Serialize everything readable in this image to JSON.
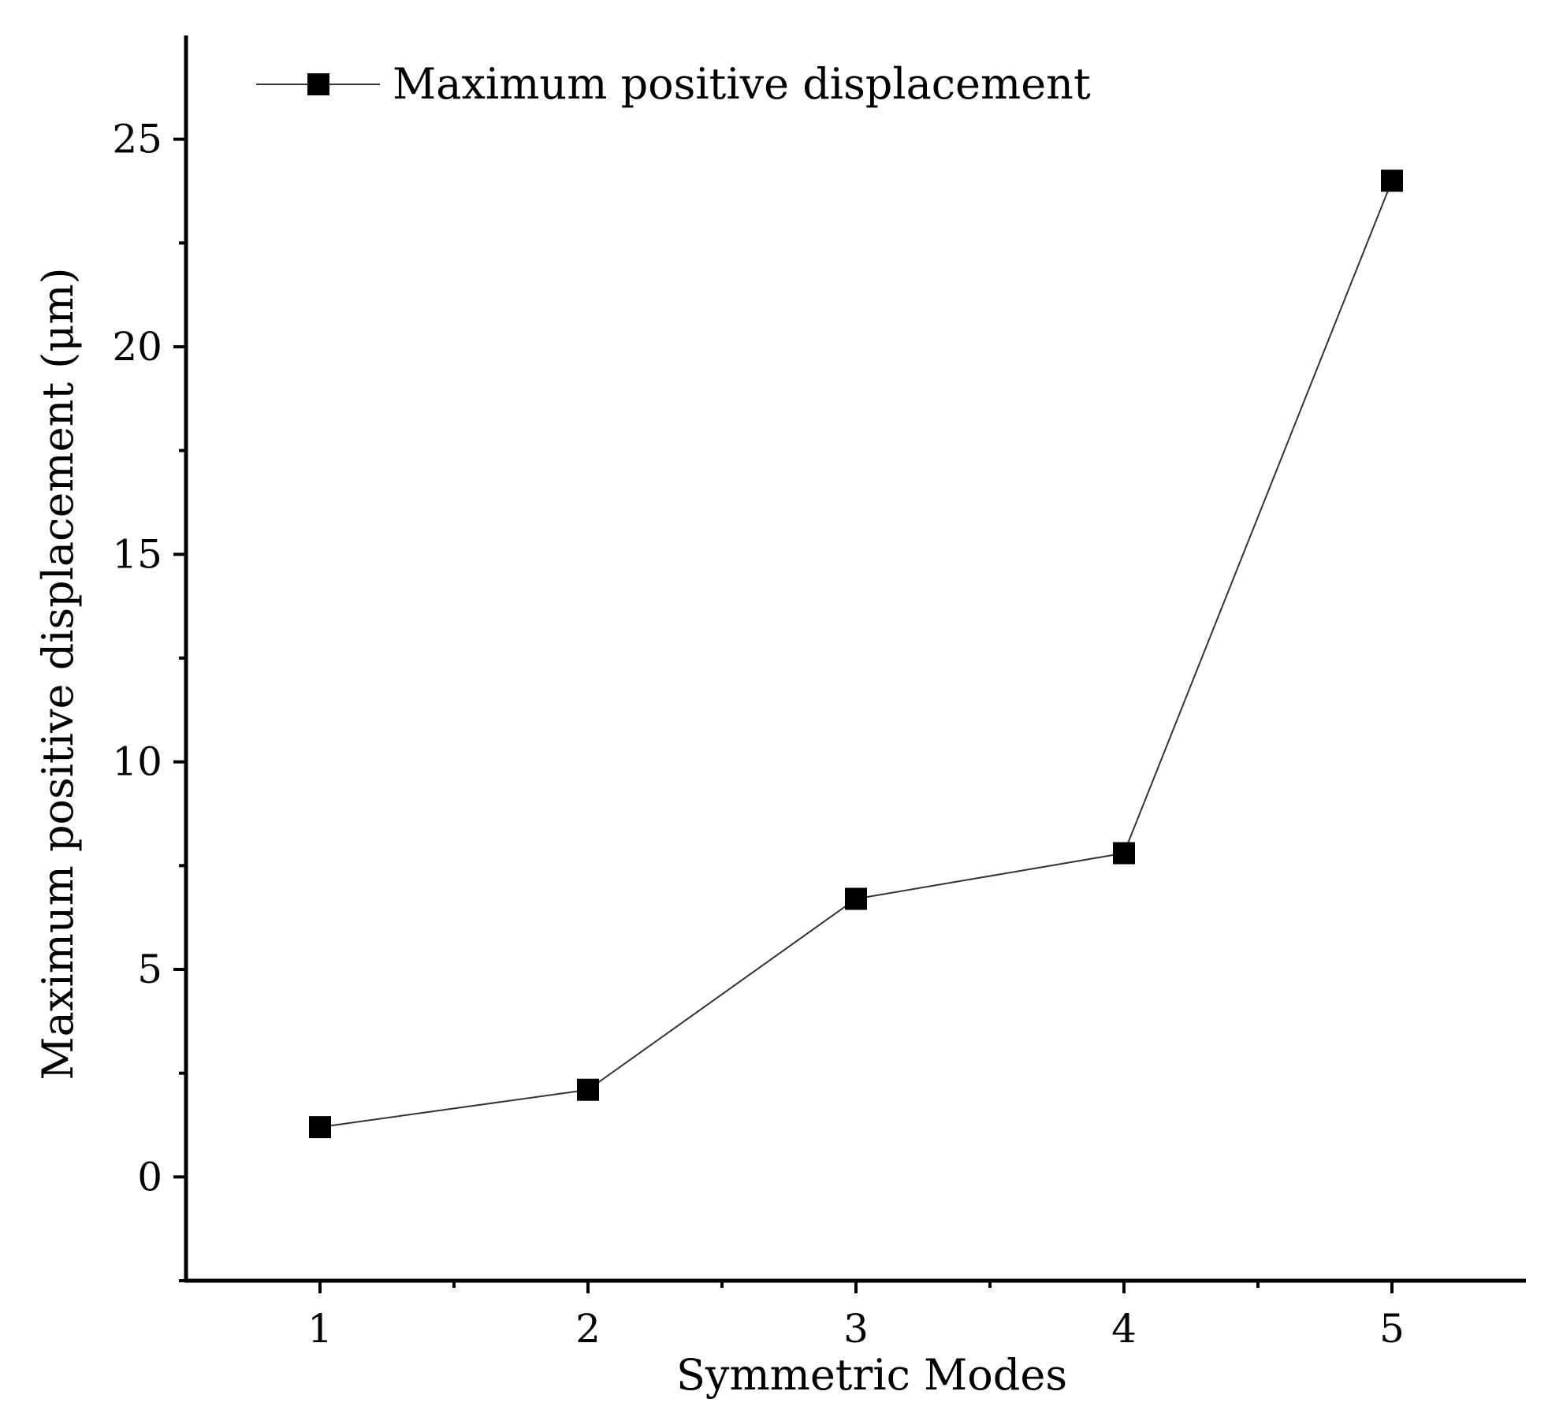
{
  "chart_data": {
    "type": "line",
    "title": "",
    "xlabel": "Symmetric Modes",
    "ylabel": "Maximum positive displacement (μm)",
    "x": [
      1,
      2,
      3,
      4,
      5
    ],
    "series": [
      {
        "name": "Maximum positive displacement",
        "values": [
          1.2,
          2.1,
          6.7,
          7.8,
          24.0
        ],
        "marker": "square",
        "color": "#000000",
        "line_color": "#333333"
      }
    ],
    "xlim": [
      0.5,
      5.5
    ],
    "ylim": [
      -2.5,
      27.5
    ],
    "xticks": [
      1,
      2,
      3,
      4,
      5
    ],
    "xtick_labels": [
      "1",
      "2",
      "3",
      "4",
      "5"
    ],
    "xminor": [
      1.5,
      2.5,
      3.5,
      4.5
    ],
    "yticks": [
      0,
      5,
      10,
      15,
      20,
      25
    ],
    "ytick_labels": [
      "0",
      "5",
      "10",
      "15",
      "20",
      "25"
    ],
    "yminor": [
      -2.5,
      2.5,
      7.5,
      12.5,
      17.5,
      22.5
    ],
    "legend_position": "top-left",
    "grid": false
  }
}
